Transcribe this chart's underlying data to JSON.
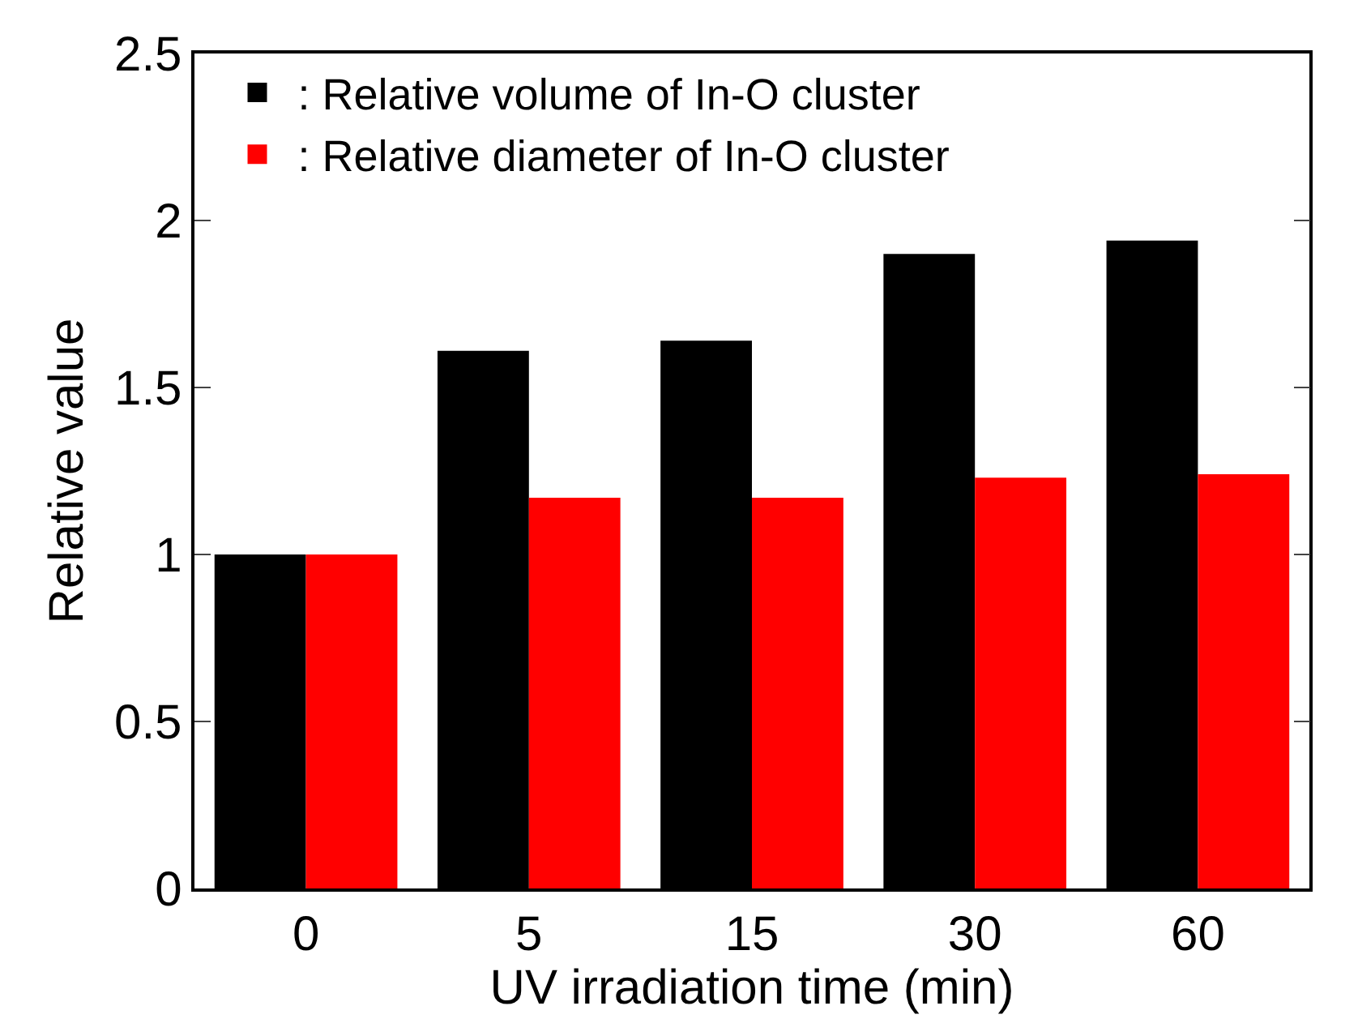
{
  "chart_data": {
    "type": "bar",
    "categories": [
      "0",
      "5",
      "15",
      "30",
      "60"
    ],
    "series": [
      {
        "name": ": Relative volume of In-O cluster",
        "color": "#000000",
        "values": [
          1.0,
          1.61,
          1.64,
          1.9,
          1.94
        ]
      },
      {
        "name": ": Relative diameter of In-O cluster",
        "color": "#ff0000",
        "values": [
          1.0,
          1.17,
          1.17,
          1.23,
          1.24
        ]
      }
    ],
    "xlabel": "UV irradiation time (min)",
    "ylabel": "Relative value",
    "ylim": [
      0,
      2.5
    ],
    "yticks": [
      0,
      0.5,
      1,
      1.5,
      2,
      2.5
    ],
    "grid": false,
    "legend": "top left"
  }
}
